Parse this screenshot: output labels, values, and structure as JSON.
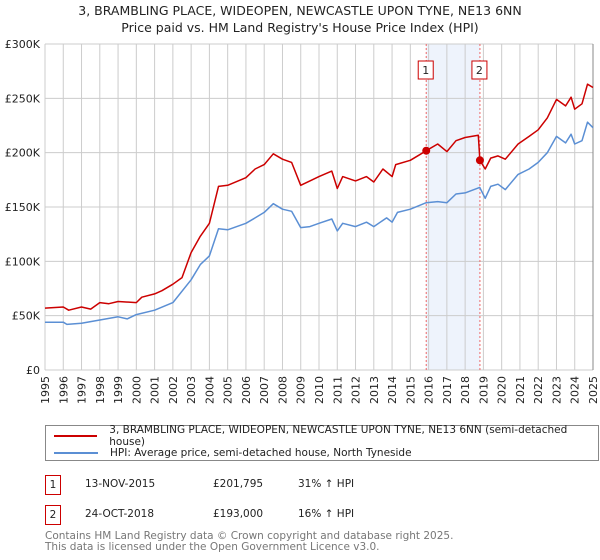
{
  "title": "3, BRAMBLING PLACE, WIDEOPEN, NEWCASTLE UPON TYNE, NE13 6NN",
  "subtitle": "Price paid vs. HM Land Registry's House Price Index (HPI)",
  "colors": {
    "property": "#cc0000",
    "hpi": "#5b8fd4",
    "band": "#eef3fc",
    "grid": "#cccccc"
  },
  "chart_data": {
    "type": "line",
    "title": "3, BRAMBLING PLACE, WIDEOPEN, NEWCASTLE UPON TYNE, NE13 6NN",
    "subtitle": "Price paid vs. HM Land Registry's House Price Index (HPI)",
    "xlim": [
      1995,
      2025
    ],
    "ylim": [
      0,
      300000
    ],
    "grid": true,
    "x_ticks": [
      "1995",
      "1996",
      "1997",
      "1998",
      "1999",
      "2000",
      "2001",
      "2002",
      "2003",
      "2004",
      "2005",
      "2006",
      "2007",
      "2008",
      "2009",
      "2010",
      "2011",
      "2012",
      "2013",
      "2014",
      "2015",
      "2016",
      "2017",
      "2018",
      "2019",
      "2020",
      "2021",
      "2022",
      "2023",
      "2024",
      "2025"
    ],
    "y_ticks": [
      {
        "v": 0,
        "label": "£0"
      },
      {
        "v": 50000,
        "label": "£50K"
      },
      {
        "v": 100000,
        "label": "£100K"
      },
      {
        "v": 150000,
        "label": "£150K"
      },
      {
        "v": 200000,
        "label": "£200K"
      },
      {
        "v": 250000,
        "label": "£250K"
      },
      {
        "v": 300000,
        "label": "£300K"
      }
    ],
    "series": [
      {
        "name": "3, BRAMBLING PLACE, WIDEOPEN, NEWCASTLE UPON TYNE, NE13 6NN (semi-detached house)",
        "color_key": "property",
        "points": [
          [
            1995,
            57
          ],
          [
            1996,
            58
          ],
          [
            1996.3,
            55
          ],
          [
            1997,
            58
          ],
          [
            1997.5,
            56
          ],
          [
            1998,
            62
          ],
          [
            1998.5,
            61
          ],
          [
            1999,
            63
          ],
          [
            2000,
            62
          ],
          [
            2000.3,
            67
          ],
          [
            2001,
            70
          ],
          [
            2001.4,
            73
          ],
          [
            2002,
            79
          ],
          [
            2002.5,
            85
          ],
          [
            2003,
            108
          ],
          [
            2003.5,
            123
          ],
          [
            2004,
            135
          ],
          [
            2004.5,
            169
          ],
          [
            2005,
            170
          ],
          [
            2006,
            177
          ],
          [
            2006.5,
            185
          ],
          [
            2007,
            189
          ],
          [
            2007.5,
            199
          ],
          [
            2008,
            194
          ],
          [
            2008.5,
            191
          ],
          [
            2009,
            170
          ],
          [
            2009.5,
            174
          ],
          [
            2010,
            178
          ],
          [
            2010.7,
            183
          ],
          [
            2011,
            167
          ],
          [
            2011.3,
            178
          ],
          [
            2012,
            174
          ],
          [
            2012.6,
            178
          ],
          [
            2013,
            173
          ],
          [
            2013.5,
            185
          ],
          [
            2014,
            178
          ],
          [
            2014.2,
            189
          ],
          [
            2015,
            193
          ],
          [
            2015.5,
            198
          ],
          [
            2015.87,
            201.8
          ],
          [
            2016.5,
            208
          ],
          [
            2017,
            201
          ],
          [
            2017.5,
            211
          ],
          [
            2018,
            214
          ],
          [
            2018.72,
            216
          ],
          [
            2018.81,
            193
          ],
          [
            2019.1,
            185
          ],
          [
            2019.4,
            195
          ],
          [
            2019.8,
            197
          ],
          [
            2020.2,
            194
          ],
          [
            2020.9,
            208
          ],
          [
            2021.5,
            215
          ],
          [
            2022,
            221
          ],
          [
            2022.5,
            232
          ],
          [
            2023,
            249
          ],
          [
            2023.5,
            243
          ],
          [
            2023.8,
            251
          ],
          [
            2024,
            240
          ],
          [
            2024.4,
            245
          ],
          [
            2024.7,
            263
          ],
          [
            2025,
            260
          ]
        ]
      },
      {
        "name": "HPI: Average price, semi-detached house, North Tyneside",
        "color_key": "hpi",
        "points": [
          [
            1995,
            44
          ],
          [
            1996,
            44
          ],
          [
            1996.2,
            42
          ],
          [
            1997,
            43
          ],
          [
            1998,
            46
          ],
          [
            1999,
            49
          ],
          [
            1999.5,
            47
          ],
          [
            2000,
            51
          ],
          [
            2001,
            55
          ],
          [
            2002,
            62
          ],
          [
            2003,
            83
          ],
          [
            2003.5,
            97
          ],
          [
            2004,
            105
          ],
          [
            2004.5,
            130
          ],
          [
            2005,
            129
          ],
          [
            2006,
            135
          ],
          [
            2006.5,
            140
          ],
          [
            2007,
            145
          ],
          [
            2007.5,
            153
          ],
          [
            2008,
            148
          ],
          [
            2008.5,
            146
          ],
          [
            2009,
            131
          ],
          [
            2009.5,
            132
          ],
          [
            2010,
            135
          ],
          [
            2010.7,
            139
          ],
          [
            2011,
            128
          ],
          [
            2011.3,
            135
          ],
          [
            2012,
            132
          ],
          [
            2012.6,
            136
          ],
          [
            2013,
            132
          ],
          [
            2013.7,
            140
          ],
          [
            2014,
            136
          ],
          [
            2014.3,
            145
          ],
          [
            2015,
            148
          ],
          [
            2015.87,
            154
          ],
          [
            2016.5,
            155
          ],
          [
            2017,
            154
          ],
          [
            2017.5,
            162
          ],
          [
            2018,
            163
          ],
          [
            2018.8,
            168
          ],
          [
            2019.1,
            158
          ],
          [
            2019.4,
            169
          ],
          [
            2019.8,
            171
          ],
          [
            2020.2,
            166
          ],
          [
            2020.9,
            180
          ],
          [
            2021.5,
            185
          ],
          [
            2022,
            191
          ],
          [
            2022.5,
            200
          ],
          [
            2023,
            215
          ],
          [
            2023.5,
            209
          ],
          [
            2023.8,
            217
          ],
          [
            2024,
            208
          ],
          [
            2024.4,
            211
          ],
          [
            2024.7,
            228
          ],
          [
            2025,
            223
          ]
        ]
      }
    ],
    "y_unit_multiplier": 1000,
    "annotations": [
      {
        "label": "1",
        "x": 2015.87,
        "y": 201795
      },
      {
        "label": "2",
        "x": 2018.81,
        "y": 193000
      }
    ],
    "shaded_range": [
      2015.87,
      2018.81
    ]
  },
  "legend": [
    {
      "label": "3, BRAMBLING PLACE, WIDEOPEN, NEWCASTLE UPON TYNE, NE13 6NN (semi-detached house)"
    },
    {
      "label": "HPI: Average price, semi-detached house, North Tyneside"
    }
  ],
  "transactions": [
    {
      "num": "1",
      "date": "13-NOV-2015",
      "price": "£201,795",
      "hpi": "31% ↑ HPI"
    },
    {
      "num": "2",
      "date": "24-OCT-2018",
      "price": "£193,000",
      "hpi": "16% ↑ HPI"
    }
  ],
  "footer": [
    "Contains HM Land Registry data © Crown copyright and database right 2025.",
    "This data is licensed under the Open Government Licence v3.0."
  ]
}
